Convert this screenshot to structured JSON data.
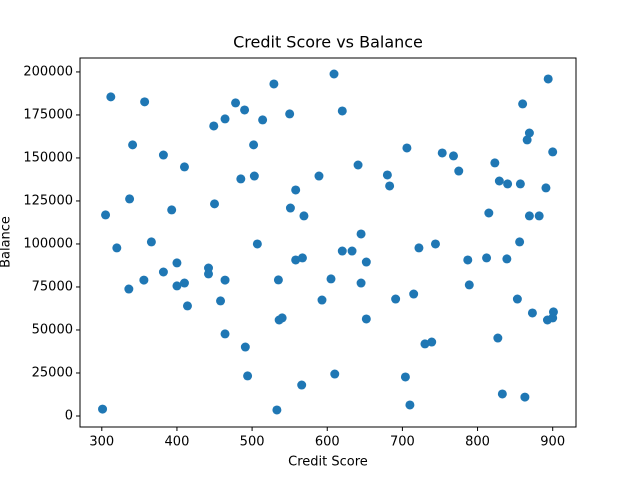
{
  "chart_data": {
    "type": "scatter",
    "title": "Credit Score vs Balance",
    "x_label": "Credit Score",
    "y_label": "Balance",
    "color": "#1f77b4",
    "x": [
      301,
      305,
      312,
      320,
      336,
      337,
      341,
      356,
      357,
      366,
      382,
      382,
      393,
      400,
      400,
      410,
      410,
      414,
      442,
      442,
      449,
      450,
      458,
      464,
      464,
      464,
      478,
      485,
      490,
      491,
      494,
      502,
      503,
      507,
      514,
      529,
      533,
      535,
      536,
      540,
      550,
      551,
      558,
      558,
      566,
      567,
      569,
      589,
      593,
      605,
      609,
      610,
      620,
      620,
      633,
      641,
      645,
      645,
      652,
      652,
      680,
      683,
      691,
      704,
      706,
      710,
      715,
      722,
      730,
      739,
      744,
      753,
      768,
      775,
      787,
      789,
      812,
      815,
      823,
      827,
      829,
      833,
      839,
      840,
      853,
      856,
      857,
      860,
      863,
      866,
      869,
      869,
      873,
      882,
      891,
      893,
      894,
      900,
      900,
      901
    ],
    "values": [
      4000,
      116900,
      185500,
      97700,
      73800,
      126200,
      157600,
      79000,
      182600,
      101200,
      151700,
      83700,
      119800,
      89000,
      75600,
      144800,
      77300,
      64000,
      86000,
      82600,
      168600,
      123300,
      66900,
      172700,
      79000,
      47700,
      182000,
      137800,
      177900,
      40100,
      23300,
      157600,
      139500,
      100000,
      172100,
      193000,
      3500,
      79100,
      55800,
      57000,
      175600,
      120900,
      131400,
      90700,
      18000,
      91900,
      116300,
      139500,
      67400,
      79700,
      198800,
      24400,
      177300,
      95900,
      95900,
      145900,
      105800,
      77300,
      89500,
      56400,
      140100,
      133700,
      68000,
      22700,
      155800,
      6400,
      70900,
      97700,
      41900,
      43000,
      100000,
      152900,
      151200,
      142400,
      90700,
      76200,
      91900,
      118000,
      147100,
      45300,
      136600,
      12800,
      91300,
      134900,
      68000,
      101200,
      134900,
      181400,
      11000,
      160500,
      164500,
      116300,
      59900,
      116300,
      132600,
      55800,
      195900,
      57000,
      153500,
      60500
    ],
    "xlim": [
      271,
      931
    ],
    "ylim": [
      -6400,
      208100
    ],
    "xticks": [
      300,
      400,
      500,
      600,
      700,
      800,
      900
    ],
    "yticks": [
      0,
      25000,
      50000,
      75000,
      100000,
      125000,
      150000,
      175000,
      200000
    ]
  }
}
